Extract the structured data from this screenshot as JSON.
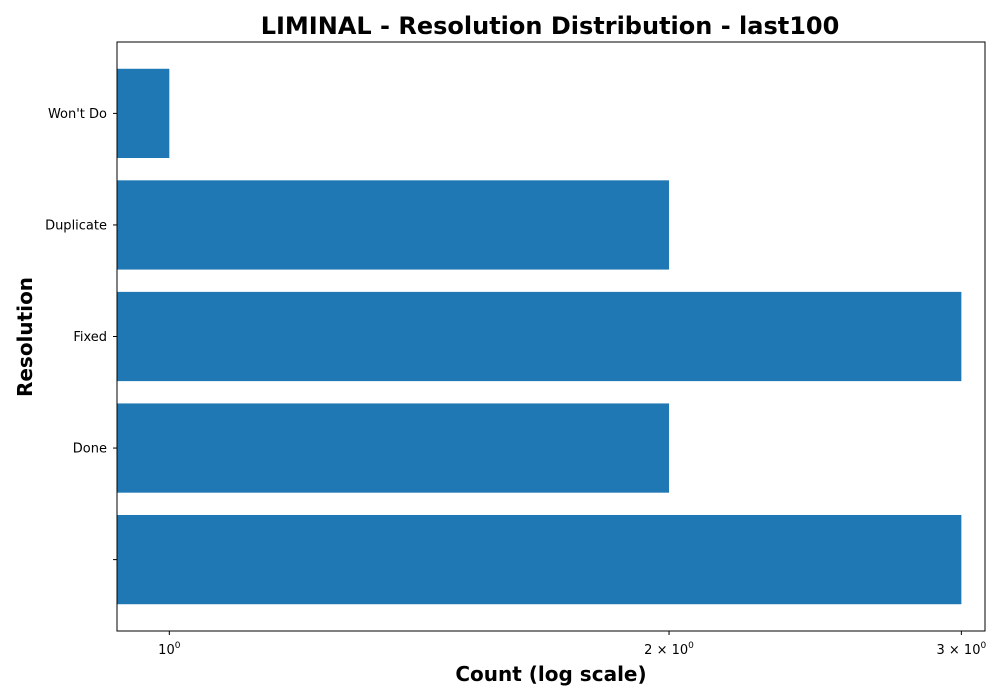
{
  "chart_data": {
    "type": "bar",
    "orientation": "horizontal",
    "title": "LIMINAL - Resolution Distribution - last100",
    "xlabel": "Count (log scale)",
    "ylabel": "Resolution",
    "x_scale": "log",
    "xlim": [
      0.93,
      3.1
    ],
    "grid": false,
    "categories": [
      "",
      "Done",
      "Fixed",
      "Duplicate",
      "Won't Do"
    ],
    "values": [
      3,
      2,
      3,
      2,
      1
    ],
    "bar_color": "#1f77b4",
    "x_ticks": [
      {
        "value": 1,
        "base": "10",
        "exp": "0"
      },
      {
        "value": 2,
        "base": "2 × 10",
        "exp": "0"
      },
      {
        "value": 3,
        "base": "3 × 10",
        "exp": "0"
      }
    ]
  }
}
